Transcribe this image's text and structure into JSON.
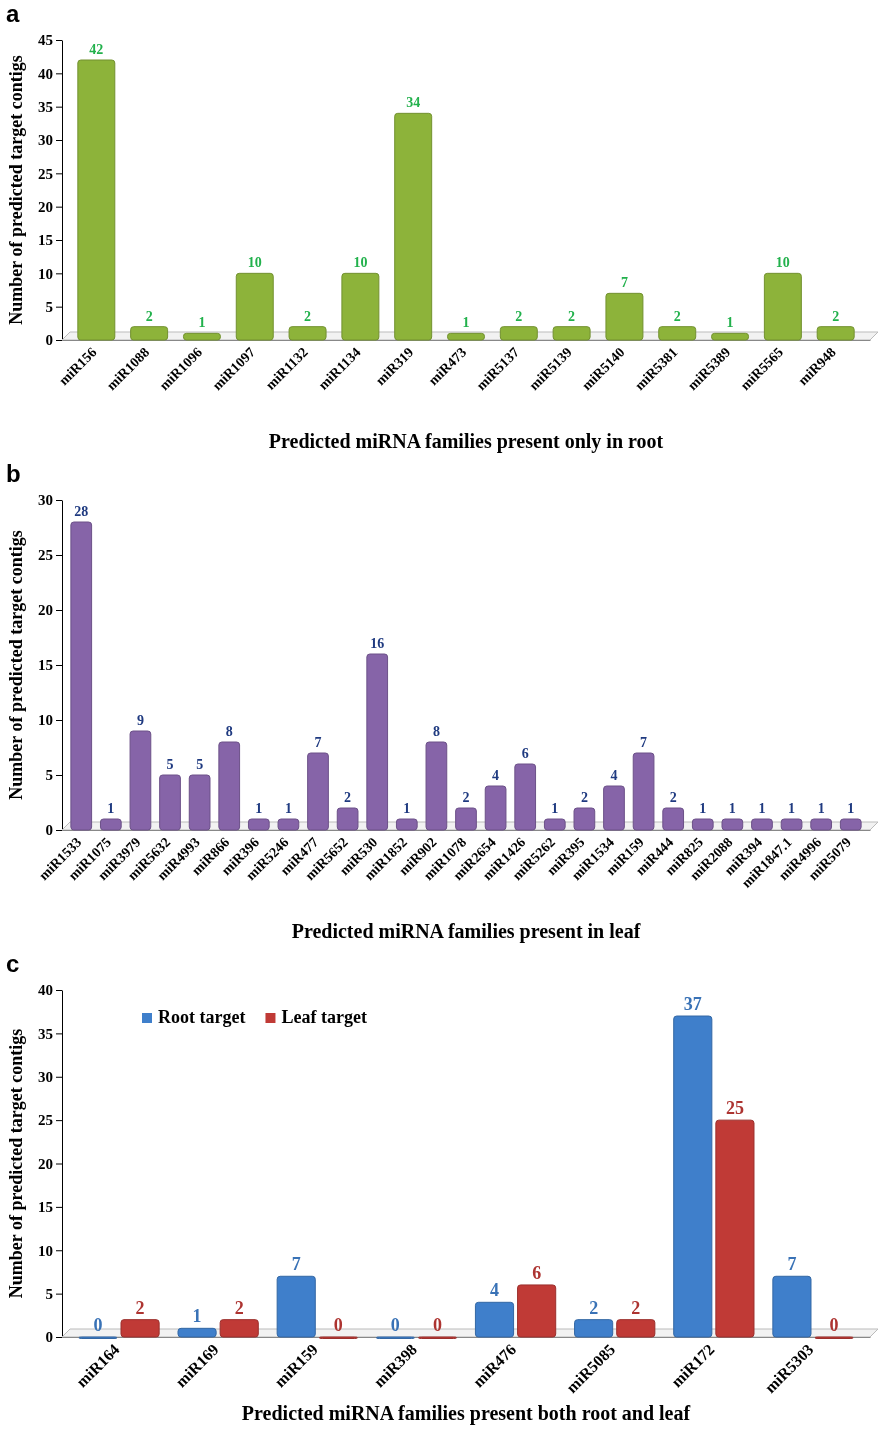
{
  "chart_data": [
    {
      "type": "bar",
      "title": "a",
      "xlabel": "Predicted miRNA families present only in root",
      "ylabel": "Number of predicted target contigs",
      "categories": [
        "miR156",
        "miR1088",
        "miR1096",
        "miR1097",
        "miR1132",
        "miR1134",
        "miR319",
        "miR473",
        "miR5137",
        "miR5139",
        "miR5140",
        "miR5381",
        "miR5389",
        "miR5565",
        "miR948"
      ],
      "values": [
        42,
        2,
        1,
        10,
        2,
        10,
        34,
        1,
        2,
        2,
        7,
        2,
        1,
        10,
        2
      ],
      "color": "#8db33a",
      "ylim": [
        0,
        45
      ],
      "yticks": [
        0,
        5,
        10,
        15,
        20,
        25,
        30,
        35,
        40,
        45
      ],
      "grid": false,
      "data_labels": true
    },
    {
      "type": "bar",
      "title": "b",
      "xlabel": "Predicted miRNA families present in leaf",
      "ylabel": "Number of predicted target contigs",
      "categories": [
        "miR1533",
        "miR1075",
        "miR3979",
        "miR5632",
        "miR4993",
        "miR866",
        "miR396",
        "miR5246",
        "miR477",
        "miR5652",
        "miR530",
        "miR1852",
        "miR902",
        "miR1078",
        "miR2654",
        "miR1426",
        "miR5262",
        "miR395",
        "miR1534",
        "miR159",
        "miR444",
        "miR825",
        "miR2088",
        "miR394",
        "miR1847.1",
        "miR4996",
        "miR5079"
      ],
      "values": [
        28,
        1,
        9,
        5,
        5,
        8,
        1,
        1,
        7,
        2,
        16,
        1,
        8,
        2,
        4,
        6,
        1,
        2,
        4,
        7,
        2,
        1,
        1,
        1,
        1,
        1,
        1
      ],
      "color": "#8664a8",
      "ylim": [
        0,
        30
      ],
      "yticks": [
        0,
        5,
        10,
        15,
        20,
        25,
        30
      ],
      "grid": false,
      "data_labels": true
    },
    {
      "type": "bar",
      "title": "c",
      "xlabel": "Predicted miRNA families present both root and leaf",
      "ylabel": "Number of predicted target contigs",
      "categories": [
        "miR164",
        "miR169",
        "miR159",
        "miR398",
        "miR476",
        "miR5085",
        "miR172",
        "miR5303"
      ],
      "series": [
        {
          "name": "Root target",
          "color": "#3f7fcb",
          "values": [
            0,
            1,
            7,
            0,
            4,
            2,
            37,
            7
          ]
        },
        {
          "name": "Leaf target",
          "color": "#c03a36",
          "values": [
            2,
            2,
            0,
            0,
            6,
            2,
            25,
            0
          ]
        }
      ],
      "ylim": [
        0,
        40
      ],
      "yticks": [
        0,
        5,
        10,
        15,
        20,
        25,
        30,
        35,
        40
      ],
      "grid": false,
      "legend": "top left",
      "data_labels": true
    }
  ]
}
